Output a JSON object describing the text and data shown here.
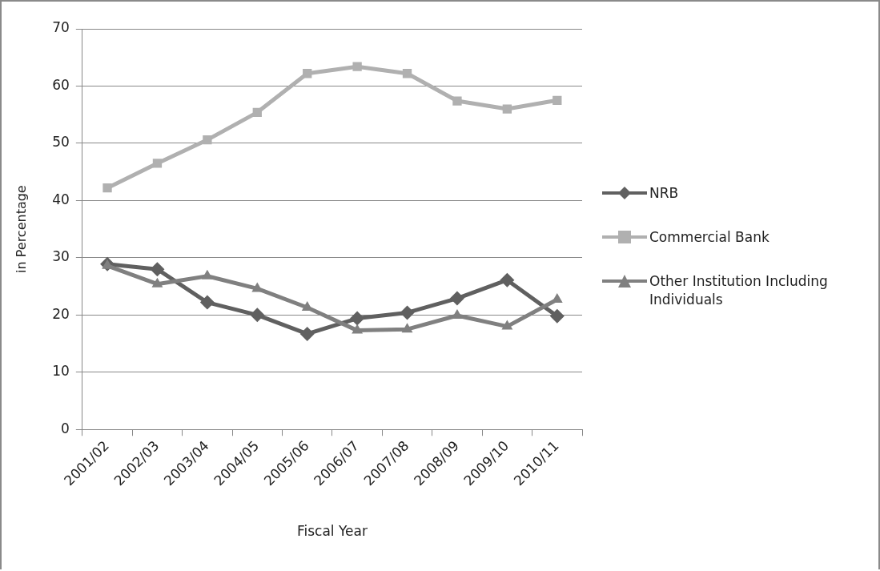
{
  "chart_data": {
    "type": "line",
    "xlabel": "Fiscal Year",
    "ylabel": "in Percentage",
    "categories": [
      "2001/02",
      "2002/03",
      "2003/04",
      "2004/05",
      "2005/06",
      "2006/07",
      "2007/08",
      "2008/09",
      "2009/10",
      "2010/11"
    ],
    "series": [
      {
        "name": "NRB",
        "color": "#606060",
        "marker": "diamond",
        "values": [
          28.9,
          28.0,
          22.2,
          20.0,
          16.7,
          19.4,
          20.4,
          22.9,
          26.1,
          19.8
        ]
      },
      {
        "name": "Commercial Bank",
        "color": "#b0b0b0",
        "marker": "square",
        "values": [
          42.2,
          46.5,
          50.6,
          55.4,
          62.2,
          63.4,
          62.2,
          57.4,
          56.0,
          57.5
        ]
      },
      {
        "name": "Other Institution Including Individuals",
        "color": "#808080",
        "marker": "triangle",
        "values": [
          28.6,
          25.4,
          26.8,
          24.6,
          21.3,
          17.3,
          17.5,
          19.9,
          18.0,
          22.7
        ]
      }
    ],
    "ylim": [
      0,
      70
    ],
    "yticks": [
      0,
      10,
      20,
      30,
      40,
      50,
      60,
      70
    ],
    "grid": "y",
    "legend": "right",
    "line_style": "solid"
  }
}
